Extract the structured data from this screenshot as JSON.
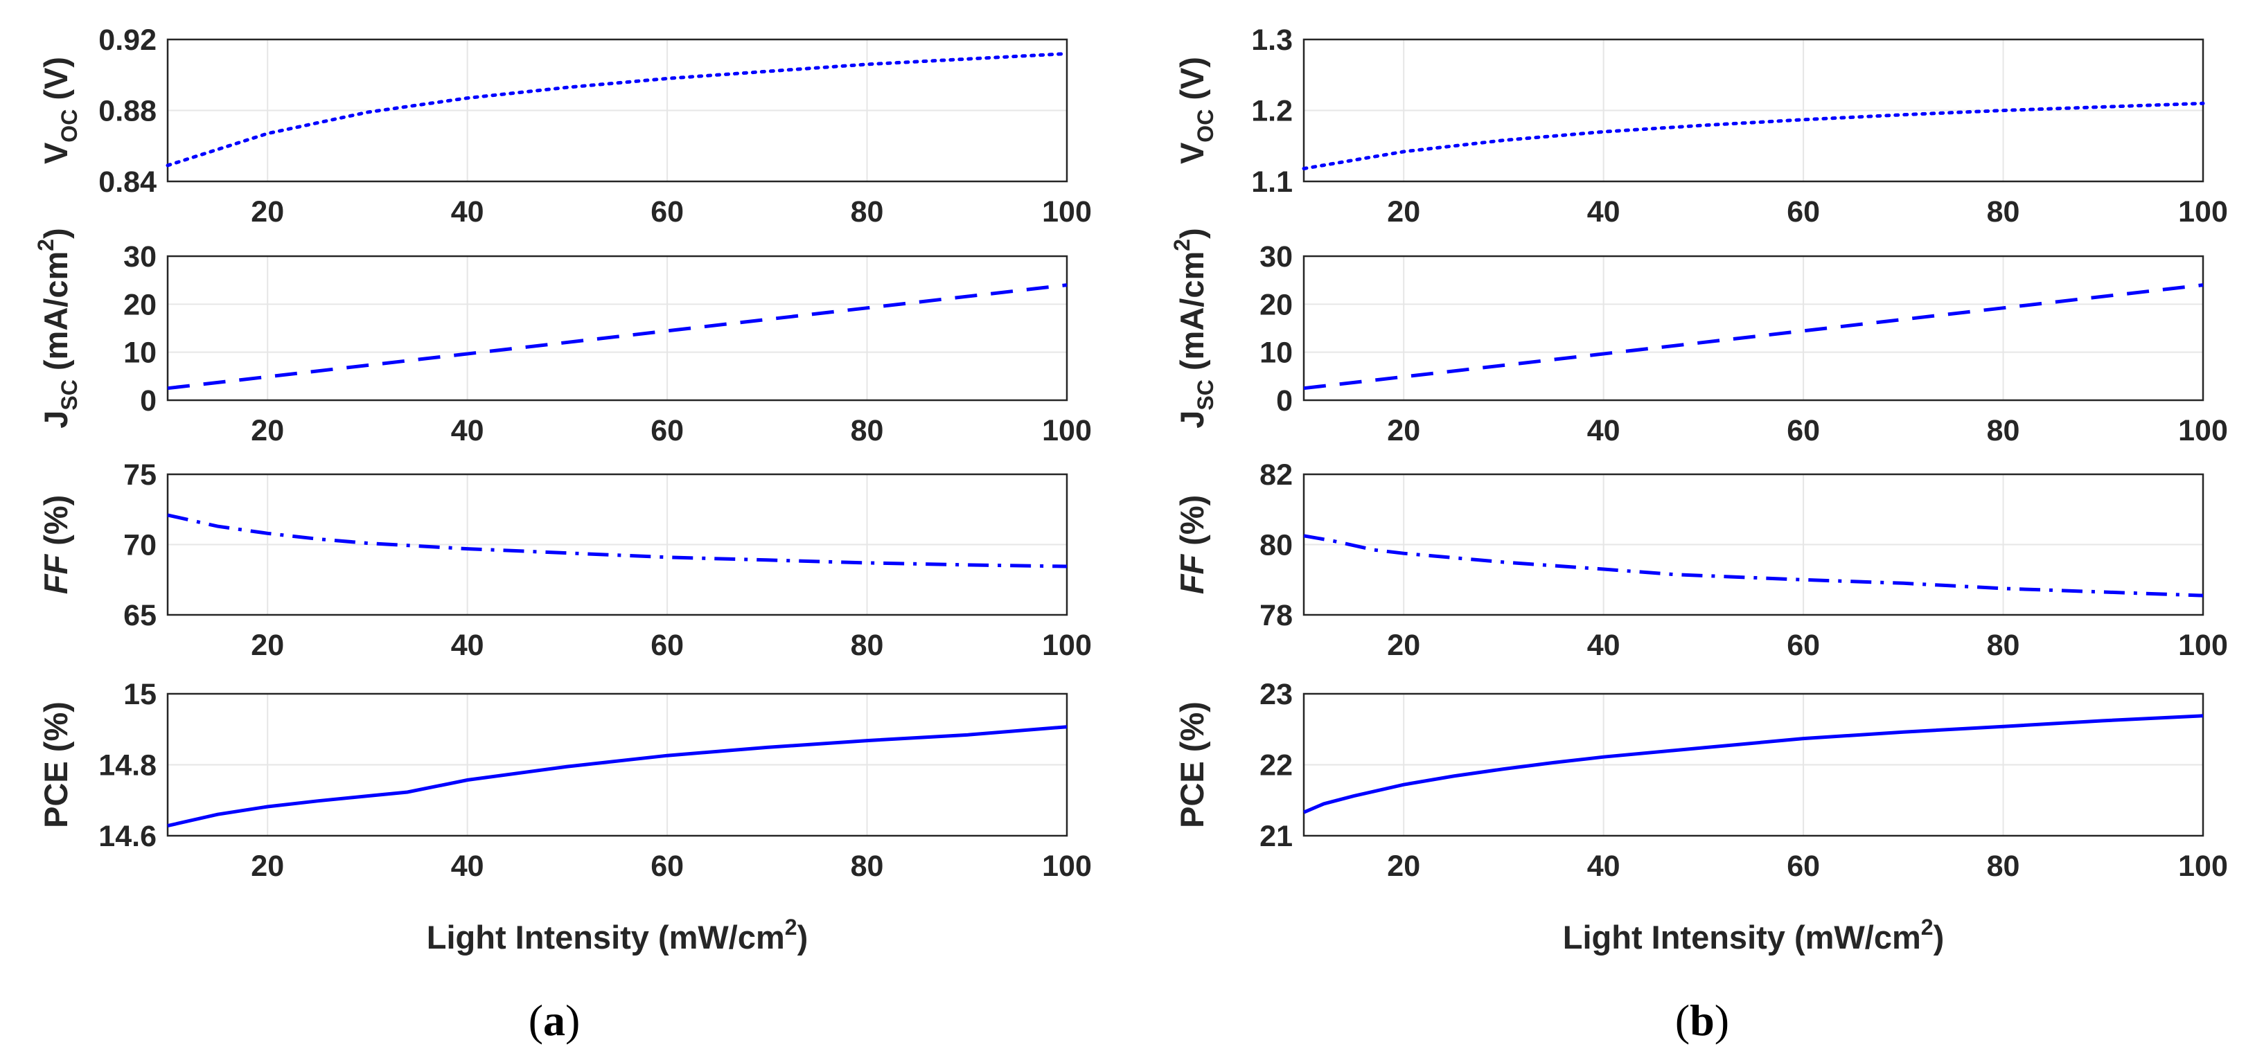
{
  "chart_data": [
    {
      "panel_label": "(a)",
      "xlabel": "Light Intensity (mW/cm",
      "xlabel_sup": "2",
      "xlabel_end": ")",
      "xlim": [
        10,
        100
      ],
      "xticks": [
        20,
        40,
        60,
        80,
        100
      ],
      "subplots": [
        {
          "type": "line",
          "style": "dotted",
          "ylabel_main": "V",
          "ylabel_sub": "OC",
          "ylabel_end": " (V)",
          "ylim": [
            0.84,
            0.92
          ],
          "yticks": [
            "0.84",
            "0.88",
            "0.92"
          ],
          "x": [
            10,
            20,
            30,
            40,
            50,
            60,
            70,
            80,
            90,
            100
          ],
          "y": [
            0.849,
            0.867,
            0.879,
            0.887,
            0.893,
            0.898,
            0.902,
            0.906,
            0.909,
            0.912
          ]
        },
        {
          "type": "line",
          "style": "dashed",
          "ylabel_main": "J",
          "ylabel_sub": "SC",
          "ylabel_end": " (mA/cm",
          "ylabel_sup": "2",
          "ylabel_close": ")",
          "ylim": [
            0,
            30
          ],
          "yticks": [
            "0",
            "10",
            "20",
            "30"
          ],
          "x": [
            10,
            100
          ],
          "y": [
            2.5,
            24.0
          ]
        },
        {
          "type": "line",
          "style": "dashdot",
          "ylabel_main": "FF",
          "ylabel_end": " (%)",
          "ylabel_main_italic": true,
          "ylim": [
            65,
            75
          ],
          "yticks": [
            "65",
            "70",
            "75"
          ],
          "x": [
            10,
            15,
            20,
            25,
            30,
            35,
            40,
            50,
            60,
            70,
            80,
            90,
            100
          ],
          "y": [
            72.1,
            71.3,
            70.8,
            70.4,
            70.1,
            69.9,
            69.7,
            69.4,
            69.1,
            68.9,
            68.7,
            68.55,
            68.45
          ]
        },
        {
          "type": "line",
          "style": "solid",
          "ylabel_main": "PCE",
          "ylabel_end": " (%)",
          "ylim": [
            14.6,
            15.0
          ],
          "yticks": [
            "14.6",
            "14.8",
            "15"
          ],
          "x": [
            10,
            15,
            20,
            25,
            30,
            34,
            40,
            50,
            60,
            70,
            80,
            90,
            100
          ],
          "y": [
            14.628,
            14.66,
            14.682,
            14.698,
            14.712,
            14.723,
            14.757,
            14.795,
            14.826,
            14.849,
            14.868,
            14.884,
            14.907
          ]
        }
      ]
    },
    {
      "panel_label": "(b)",
      "xlabel": "Light Intensity (mW/cm",
      "xlabel_sup": "2",
      "xlabel_end": ")",
      "xlim": [
        10,
        100
      ],
      "xticks": [
        20,
        40,
        60,
        80,
        100
      ],
      "subplots": [
        {
          "type": "line",
          "style": "dotted",
          "ylabel_main": "V",
          "ylabel_sub": "OC",
          "ylabel_end": " (V)",
          "ylim": [
            1.1,
            1.3
          ],
          "yticks": [
            "1.1",
            "1.2",
            "1.3"
          ],
          "x": [
            10,
            20,
            30,
            40,
            50,
            60,
            70,
            80,
            90,
            100
          ],
          "y": [
            1.118,
            1.142,
            1.158,
            1.17,
            1.179,
            1.187,
            1.194,
            1.2,
            1.205,
            1.21
          ]
        },
        {
          "type": "line",
          "style": "dashed",
          "ylabel_main": "J",
          "ylabel_sub": "SC",
          "ylabel_end": " (mA/cm",
          "ylabel_sup": "2",
          "ylabel_close": ")",
          "ylim": [
            0,
            30
          ],
          "yticks": [
            "0",
            "10",
            "20",
            "30"
          ],
          "x": [
            10,
            100
          ],
          "y": [
            2.5,
            24.0
          ]
        },
        {
          "type": "line",
          "style": "dashdot",
          "ylabel_main": "FF",
          "ylabel_end": " (%)",
          "ylabel_main_italic": true,
          "ylim": [
            78,
            82
          ],
          "yticks": [
            "78",
            "80",
            "82"
          ],
          "x": [
            10,
            13,
            17,
            20,
            30,
            40,
            47,
            60,
            70,
            80,
            90,
            100
          ],
          "y": [
            80.25,
            80.1,
            79.85,
            79.75,
            79.5,
            79.3,
            79.15,
            79.0,
            78.9,
            78.75,
            78.65,
            78.55
          ]
        },
        {
          "type": "line",
          "style": "solid",
          "ylabel_main": "PCE",
          "ylabel_end": " (%)",
          "ylim": [
            21,
            23
          ],
          "yticks": [
            "21",
            "22",
            "23"
          ],
          "x": [
            10,
            12,
            15,
            20,
            25,
            30,
            35,
            40,
            50,
            60,
            70,
            80,
            90,
            100
          ],
          "y": [
            21.33,
            21.45,
            21.56,
            21.72,
            21.84,
            21.94,
            22.03,
            22.11,
            22.24,
            22.37,
            22.46,
            22.54,
            22.62,
            22.69
          ]
        }
      ]
    }
  ]
}
